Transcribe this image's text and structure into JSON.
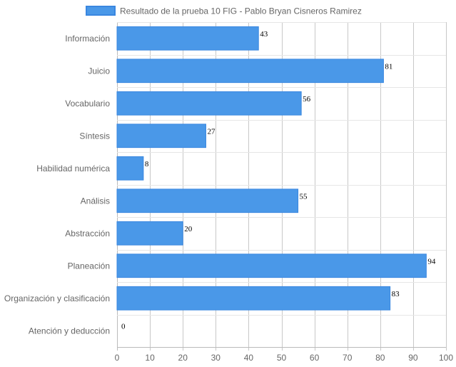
{
  "chart_data": {
    "type": "bar",
    "orientation": "horizontal",
    "categories": [
      "Información",
      "Juicio",
      "Vocabulario",
      "Síntesis",
      "Habilidad numérica",
      "Análisis",
      "Abstracción",
      "Planeación",
      "Organización y clasificación",
      "Atención y deducción"
    ],
    "series": [
      {
        "name": "Resultado de la prueba 10 FIG - Pablo Bryan Cisneros Ramirez",
        "values": [
          43,
          81,
          56,
          27,
          8,
          55,
          20,
          94,
          83,
          0
        ],
        "color": "#4a98e8",
        "border_color": "#3a87e0"
      }
    ],
    "xlim": [
      0,
      100
    ],
    "x_ticks": [
      0,
      10,
      20,
      30,
      40,
      50,
      60,
      70,
      80,
      90,
      100
    ],
    "grid": true,
    "legend_position": "top",
    "data_labels": true
  }
}
